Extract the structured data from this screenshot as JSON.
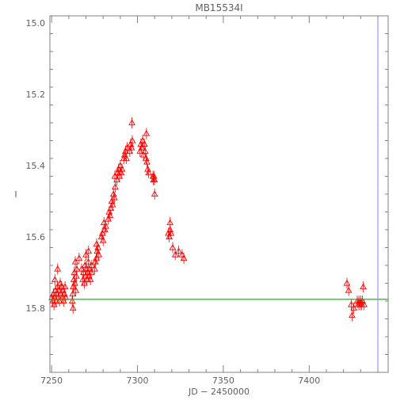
{
  "chart_data": {
    "type": "scatter",
    "title": "MB15534I",
    "xlabel": "JD − 2450000",
    "ylabel": "I",
    "xlim": [
      7249,
      7446
    ],
    "ylim": [
      15.98,
      14.98
    ],
    "y_inverted": true,
    "x_ticks": [
      7250,
      7300,
      7350,
      7400
    ],
    "x_tick_labels": [
      "7250",
      "7300",
      "7350",
      "7400"
    ],
    "y_ticks": [
      15.0,
      15.2,
      15.4,
      15.6,
      15.8
    ],
    "y_tick_labels": [
      "15.0",
      "15.2",
      "15.4",
      "15.6",
      "15.8"
    ],
    "grid": false,
    "colors": {
      "data": "#ff0000",
      "baseline": "#00cc00",
      "marker_line": "#8080ff",
      "axes": "#808080"
    },
    "marker": "triangle-open",
    "baseline": {
      "y": 15.775
    },
    "vertical_marker": {
      "x": 7440
    },
    "points": [
      [
        7250.2,
        15.77
      ],
      [
        7250.6,
        15.78
      ],
      [
        7251.0,
        15.76
      ],
      [
        7251.4,
        15.79
      ],
      [
        7251.8,
        15.77
      ],
      [
        7252.2,
        15.75
      ],
      [
        7252.6,
        15.78
      ],
      [
        7253.0,
        15.76
      ],
      [
        7253.4,
        15.74
      ],
      [
        7253.8,
        15.77
      ],
      [
        7254.2,
        15.75
      ],
      [
        7254.6,
        15.78
      ],
      [
        7255.0,
        15.73
      ],
      [
        7255.4,
        15.76
      ],
      [
        7255.8,
        15.74
      ],
      [
        7256.2,
        15.77
      ],
      [
        7256.6,
        15.75
      ],
      [
        7257.0,
        15.78
      ],
      [
        7257.4,
        15.76
      ],
      [
        7257.8,
        15.74
      ],
      [
        7258.2,
        15.77
      ],
      [
        7251.9,
        15.72
      ],
      [
        7253.5,
        15.69
      ],
      [
        7262.0,
        15.78
      ],
      [
        7262.3,
        15.76
      ],
      [
        7262.6,
        15.74
      ],
      [
        7262.9,
        15.72
      ],
      [
        7263.2,
        15.7
      ],
      [
        7263.5,
        15.73
      ],
      [
        7263.8,
        15.67
      ],
      [
        7264.1,
        15.75
      ],
      [
        7264.4,
        15.71
      ],
      [
        7264.7,
        15.69
      ],
      [
        7262.5,
        15.8
      ],
      [
        7266.0,
        15.66
      ],
      [
        7267.5,
        15.69
      ],
      [
        7268.2,
        15.72
      ],
      [
        7268.6,
        15.7
      ],
      [
        7269.0,
        15.73
      ],
      [
        7269.4,
        15.68
      ],
      [
        7269.8,
        15.71
      ],
      [
        7270.2,
        15.69
      ],
      [
        7270.6,
        15.72
      ],
      [
        7271.0,
        15.7
      ],
      [
        7271.4,
        15.67
      ],
      [
        7271.8,
        15.71
      ],
      [
        7272.2,
        15.69
      ],
      [
        7272.6,
        15.72
      ],
      [
        7273.0,
        15.7
      ],
      [
        7273.4,
        15.68
      ],
      [
        7270.0,
        15.65
      ],
      [
        7271.5,
        15.64
      ],
      [
        7275.0,
        15.69
      ],
      [
        7275.5,
        15.67
      ],
      [
        7276.0,
        15.66
      ],
      [
        7276.5,
        15.64
      ],
      [
        7277.0,
        15.63
      ],
      [
        7277.5,
        15.65
      ],
      [
        7276.2,
        15.62
      ],
      [
        7279.0,
        15.6
      ],
      [
        7279.5,
        15.59
      ],
      [
        7280.0,
        15.61
      ],
      [
        7281.0,
        15.58
      ],
      [
        7281.5,
        15.57
      ],
      [
        7280.5,
        15.56
      ],
      [
        7283.0,
        15.55
      ],
      [
        7283.5,
        15.53
      ],
      [
        7284.0,
        15.54
      ],
      [
        7284.5,
        15.52
      ],
      [
        7285.0,
        15.5
      ],
      [
        7285.5,
        15.51
      ],
      [
        7286.0,
        15.48
      ],
      [
        7286.5,
        15.49
      ],
      [
        7287.0,
        15.46
      ],
      [
        7286.8,
        15.43
      ],
      [
        7288.0,
        15.44
      ],
      [
        7288.5,
        15.42
      ],
      [
        7289.0,
        15.41
      ],
      [
        7289.5,
        15.43
      ],
      [
        7290.0,
        15.4
      ],
      [
        7290.5,
        15.42
      ],
      [
        7291.0,
        15.41
      ],
      [
        7292.0,
        15.38
      ],
      [
        7292.5,
        15.37
      ],
      [
        7293.0,
        15.36
      ],
      [
        7293.5,
        15.38
      ],
      [
        7294.0,
        15.35
      ],
      [
        7295.5,
        15.36
      ],
      [
        7296.0,
        15.34
      ],
      [
        7296.5,
        15.35
      ],
      [
        7297.0,
        15.33
      ],
      [
        7296.8,
        15.28
      ],
      [
        7301.5,
        15.36
      ],
      [
        7302.0,
        15.34
      ],
      [
        7302.5,
        15.35
      ],
      [
        7303.0,
        15.33
      ],
      [
        7303.5,
        15.37
      ],
      [
        7304.0,
        15.34
      ],
      [
        7304.5,
        15.36
      ],
      [
        7305.0,
        15.38
      ],
      [
        7305.5,
        15.39
      ],
      [
        7306.0,
        15.41
      ],
      [
        7306.5,
        15.42
      ],
      [
        7305.2,
        15.31
      ],
      [
        7309.0,
        15.43
      ],
      [
        7309.3,
        15.44
      ],
      [
        7309.6,
        15.43
      ],
      [
        7309.9,
        15.44
      ],
      [
        7310.0,
        15.48
      ],
      [
        7318.0,
        15.59
      ],
      [
        7318.5,
        15.6
      ],
      [
        7319.0,
        15.58
      ],
      [
        7319.5,
        15.59
      ],
      [
        7319.0,
        15.56
      ],
      [
        7320.5,
        15.63
      ],
      [
        7322.0,
        15.65
      ],
      [
        7324.0,
        15.64
      ],
      [
        7326.0,
        15.65
      ],
      [
        7327.0,
        15.66
      ],
      [
        7422.0,
        15.73
      ],
      [
        7423.0,
        15.75
      ],
      [
        7424.5,
        15.79
      ],
      [
        7425.0,
        15.82
      ],
      [
        7426.0,
        15.8
      ],
      [
        7428.0,
        15.78
      ],
      [
        7428.5,
        15.79
      ],
      [
        7429.0,
        15.78
      ],
      [
        7429.5,
        15.79
      ],
      [
        7430.0,
        15.78
      ],
      [
        7430.5,
        15.79
      ],
      [
        7431.0,
        15.78
      ],
      [
        7431.5,
        15.74
      ],
      [
        7432.0,
        15.79
      ]
    ]
  }
}
